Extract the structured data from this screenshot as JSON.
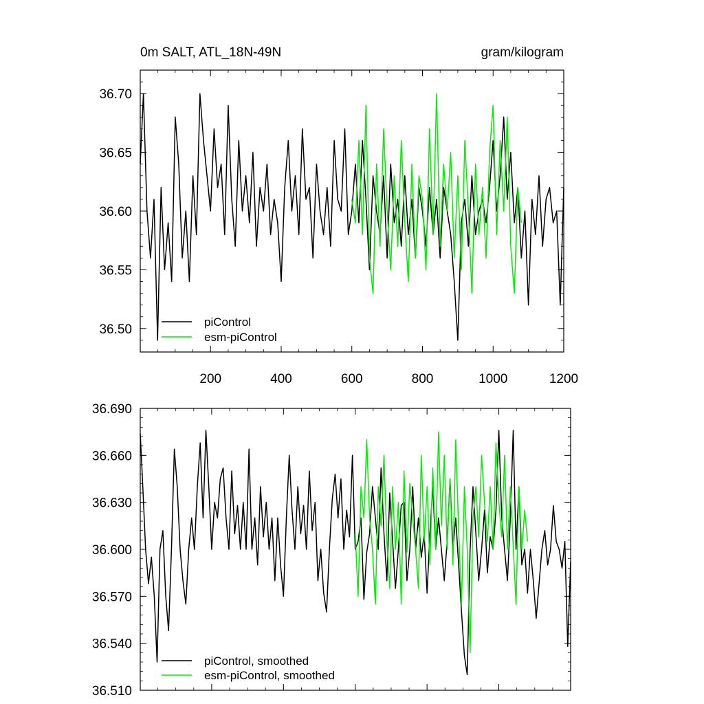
{
  "chart_data": [
    {
      "type": "line",
      "title_left": "0m SALT, ATL_18N-49N",
      "title_right": "gram/kilogram",
      "xlim": [
        1,
        1200
      ],
      "ylim": [
        36.48,
        36.72
      ],
      "x_ticks": [
        200,
        400,
        600,
        800,
        1000,
        1200
      ],
      "x_tick_labels": [
        "200",
        "400",
        "600",
        "800",
        "1000",
        "1200"
      ],
      "y_ticks": [
        36.5,
        36.55,
        36.6,
        36.65,
        36.7
      ],
      "y_tick_labels": [
        "36.50",
        "36.55",
        "36.60",
        "36.65",
        "36.70"
      ],
      "legend": [
        "piControl",
        "esm-piControl"
      ],
      "series": [
        {
          "name": "piControl",
          "color": "#000000",
          "x": [
            1,
            10,
            20,
            30,
            40,
            50,
            60,
            70,
            80,
            90,
            100,
            110,
            120,
            130,
            140,
            150,
            160,
            170,
            180,
            190,
            200,
            210,
            220,
            230,
            240,
            250,
            260,
            270,
            280,
            290,
            300,
            310,
            320,
            330,
            340,
            350,
            360,
            370,
            380,
            390,
            400,
            410,
            420,
            430,
            440,
            450,
            460,
            470,
            480,
            490,
            500,
            510,
            520,
            530,
            540,
            550,
            560,
            570,
            580,
            590,
            600,
            610,
            620,
            630,
            640,
            650,
            660,
            670,
            680,
            690,
            700,
            710,
            720,
            730,
            740,
            750,
            760,
            770,
            780,
            790,
            800,
            810,
            820,
            830,
            840,
            850,
            860,
            870,
            880,
            890,
            900,
            910,
            920,
            930,
            940,
            950,
            960,
            970,
            980,
            990,
            1000,
            1010,
            1020,
            1030,
            1040,
            1050,
            1060,
            1070,
            1080,
            1090,
            1100,
            1110,
            1120,
            1130,
            1140,
            1150,
            1160,
            1170,
            1180,
            1190,
            1200
          ],
          "values": [
            36.64,
            36.7,
            36.6,
            36.56,
            36.61,
            36.49,
            36.62,
            36.55,
            36.59,
            36.54,
            36.68,
            36.64,
            36.56,
            36.6,
            36.54,
            36.63,
            36.58,
            36.7,
            36.66,
            36.63,
            36.6,
            36.67,
            36.62,
            36.64,
            36.58,
            36.69,
            36.61,
            36.57,
            36.66,
            36.6,
            36.63,
            36.59,
            36.65,
            36.57,
            36.62,
            36.6,
            36.64,
            36.58,
            36.61,
            36.59,
            36.54,
            36.62,
            36.66,
            36.6,
            36.63,
            36.58,
            36.67,
            36.61,
            36.62,
            36.56,
            36.64,
            36.6,
            36.58,
            36.62,
            36.57,
            36.66,
            36.61,
            36.6,
            36.67,
            36.58,
            36.6,
            36.64,
            36.59,
            36.66,
            36.61,
            36.55,
            36.63,
            36.6,
            36.58,
            36.63,
            36.56,
            36.64,
            36.59,
            36.61,
            36.57,
            36.63,
            36.58,
            36.61,
            36.56,
            36.62,
            36.6,
            36.57,
            36.62,
            36.58,
            36.61,
            36.56,
            36.62,
            36.6,
            36.58,
            36.54,
            36.49,
            36.59,
            36.61,
            36.57,
            36.63,
            36.58,
            36.6,
            36.61,
            36.59,
            36.62,
            36.66,
            36.6,
            36.63,
            36.68,
            36.61,
            36.65,
            36.59,
            36.62,
            36.56,
            36.6,
            36.52,
            36.61,
            36.58,
            36.63,
            36.57,
            36.61,
            36.62,
            36.59,
            36.6,
            36.52,
            36.62
          ]
        },
        {
          "name": "esm-piControl",
          "color": "#00ee00",
          "x": [
            600,
            610,
            620,
            630,
            640,
            650,
            660,
            670,
            680,
            690,
            700,
            710,
            720,
            730,
            740,
            750,
            760,
            770,
            780,
            790,
            800,
            810,
            820,
            830,
            840,
            850,
            860,
            870,
            880,
            890,
            900,
            910,
            920,
            930,
            940,
            950,
            960,
            970,
            980,
            990,
            1000,
            1010,
            1020,
            1030,
            1040,
            1050,
            1060,
            1070,
            1080
          ],
          "values": [
            36.61,
            36.59,
            36.66,
            36.58,
            36.69,
            36.56,
            36.53,
            36.64,
            36.57,
            36.67,
            36.6,
            36.55,
            36.63,
            36.57,
            36.66,
            36.59,
            36.54,
            36.64,
            36.56,
            36.63,
            36.61,
            36.55,
            36.67,
            36.58,
            36.7,
            36.57,
            36.64,
            36.6,
            36.65,
            36.56,
            36.63,
            36.55,
            36.66,
            36.6,
            36.53,
            36.64,
            36.58,
            36.62,
            36.56,
            36.65,
            36.69,
            36.58,
            36.66,
            36.6,
            36.68,
            36.57,
            36.53,
            36.62,
            36.59
          ]
        }
      ]
    },
    {
      "type": "line",
      "xlim": [
        1,
        1200
      ],
      "ylim": [
        36.51,
        36.69
      ],
      "y_ticks": [
        36.51,
        36.54,
        36.57,
        36.6,
        36.63,
        36.66,
        36.69
      ],
      "y_tick_labels": [
        "36.510",
        "36.540",
        "36.570",
        "36.600",
        "36.630",
        "36.660",
        "36.690"
      ],
      "legend": [
        "piControl, smoothed",
        "esm-piControl, smoothed"
      ],
      "series": [
        {
          "name": "piControl, smoothed",
          "color": "#000000",
          "x": [
            1,
            8,
            16,
            24,
            32,
            40,
            48,
            56,
            64,
            72,
            80,
            88,
            96,
            104,
            112,
            120,
            128,
            136,
            144,
            152,
            160,
            168,
            176,
            184,
            192,
            200,
            208,
            216,
            224,
            232,
            240,
            248,
            256,
            264,
            272,
            280,
            288,
            296,
            304,
            312,
            320,
            328,
            336,
            344,
            352,
            360,
            368,
            376,
            384,
            392,
            400,
            408,
            416,
            424,
            432,
            440,
            448,
            456,
            464,
            472,
            480,
            488,
            496,
            504,
            512,
            520,
            528,
            536,
            544,
            552,
            560,
            568,
            576,
            584,
            592,
            600,
            608,
            616,
            624,
            632,
            640,
            648,
            656,
            664,
            672,
            680,
            688,
            696,
            704,
            712,
            720,
            728,
            736,
            744,
            752,
            760,
            768,
            776,
            784,
            792,
            800,
            808,
            816,
            824,
            832,
            840,
            848,
            856,
            864,
            872,
            880,
            888,
            896,
            904,
            912,
            920,
            928,
            936,
            944,
            952,
            960,
            968,
            976,
            984,
            992,
            1000,
            1008,
            1016,
            1024,
            1032,
            1040,
            1048,
            1056,
            1064,
            1072,
            1080,
            1088,
            1096,
            1104,
            1112,
            1120,
            1128,
            1136,
            1144,
            1152,
            1160,
            1168,
            1176,
            1184,
            1192,
            1200
          ],
          "values": [
            36.674,
            36.64,
            36.6,
            36.578,
            36.595,
            36.57,
            36.528,
            36.6,
            36.612,
            36.57,
            36.548,
            36.6,
            36.664,
            36.64,
            36.6,
            36.58,
            36.565,
            36.6,
            36.62,
            36.6,
            36.64,
            36.668,
            36.62,
            36.676,
            36.64,
            36.6,
            36.63,
            36.62,
            36.645,
            36.652,
            36.62,
            36.6,
            36.65,
            36.61,
            36.628,
            36.6,
            36.63,
            36.6,
            36.664,
            36.6,
            36.62,
            36.59,
            36.64,
            36.608,
            36.63,
            36.6,
            36.62,
            36.58,
            36.62,
            36.59,
            36.57,
            36.62,
            36.66,
            36.625,
            36.6,
            36.64,
            36.61,
            36.628,
            36.6,
            36.65,
            36.612,
            36.63,
            36.58,
            36.6,
            36.572,
            36.56,
            36.6,
            36.632,
            36.648,
            36.62,
            36.645,
            36.6,
            36.625,
            36.608,
            36.66,
            36.6,
            36.605,
            36.62,
            36.568,
            36.598,
            36.61,
            36.64,
            36.62,
            36.6,
            36.652,
            36.61,
            36.58,
            36.636,
            36.606,
            36.575,
            36.6,
            36.628,
            36.63,
            36.58,
            36.6,
            36.64,
            36.6,
            36.62,
            36.595,
            36.61,
            36.572,
            36.61,
            36.64,
            36.6,
            36.62,
            36.6,
            36.58,
            36.605,
            36.645,
            36.6,
            36.62,
            36.59,
            36.56,
            36.532,
            36.52,
            36.6,
            36.64,
            36.61,
            36.58,
            36.6,
            36.625,
            36.585,
            36.608,
            36.6,
            36.625,
            36.676,
            36.62,
            36.6,
            36.58,
            36.62,
            36.676,
            36.6,
            36.64,
            36.59,
            36.6,
            36.572,
            36.6,
            36.58,
            36.556,
            36.578,
            36.6,
            36.612,
            36.59,
            36.6,
            36.628,
            36.605,
            36.6,
            36.588,
            36.605,
            36.538,
            36.592
          ]
        },
        {
          "name": "esm-piControl, smoothed",
          "color": "#00ee00",
          "x": [
            600,
            608,
            616,
            624,
            632,
            640,
            648,
            656,
            664,
            672,
            680,
            688,
            696,
            704,
            712,
            720,
            728,
            736,
            744,
            752,
            760,
            768,
            776,
            784,
            792,
            800,
            808,
            816,
            824,
            832,
            840,
            848,
            856,
            864,
            872,
            880,
            888,
            896,
            904,
            912,
            920,
            928,
            936,
            944,
            952,
            960,
            968,
            976,
            984,
            992,
            1000,
            1008,
            1016,
            1024,
            1032,
            1040,
            1048,
            1056,
            1064,
            1072,
            1080
          ],
          "values": [
            36.61,
            36.57,
            36.64,
            36.62,
            36.67,
            36.62,
            36.6,
            36.565,
            36.64,
            36.615,
            36.66,
            36.605,
            36.575,
            36.64,
            36.6,
            36.63,
            36.565,
            36.65,
            36.598,
            36.642,
            36.62,
            36.6,
            36.575,
            36.66,
            36.605,
            36.64,
            36.59,
            36.652,
            36.6,
            36.675,
            36.615,
            36.66,
            36.6,
            36.645,
            36.59,
            36.67,
            36.612,
            36.565,
            36.64,
            36.6,
            36.534,
            36.62,
            36.64,
            36.608,
            36.66,
            36.63,
            36.605,
            36.64,
            36.6,
            36.668,
            36.63,
            36.608,
            36.66,
            36.6,
            36.64,
            36.602,
            36.565,
            36.64,
            36.6,
            36.625,
            36.605
          ]
        }
      ]
    }
  ]
}
